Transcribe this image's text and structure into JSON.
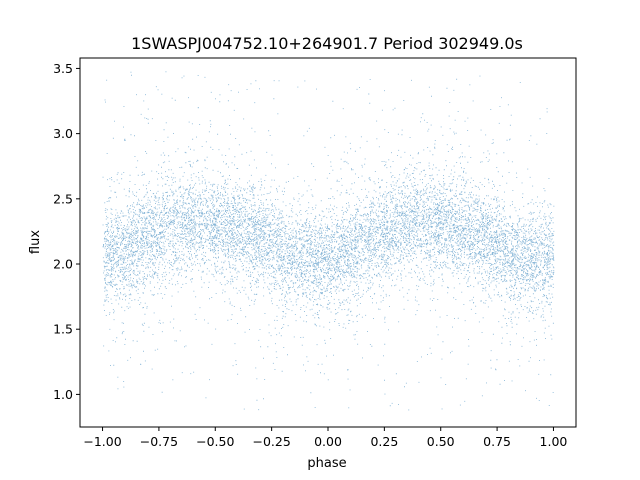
{
  "chart_data": {
    "type": "scatter",
    "title": "1SWASPJ004752.10+264901.7 Period 302949.0s",
    "xlabel": "phase",
    "ylabel": "flux",
    "xlim": [
      -1.1,
      1.1
    ],
    "ylim": [
      0.75,
      3.58
    ],
    "xticks": [
      -1.0,
      -0.75,
      -0.5,
      -0.25,
      0.0,
      0.25,
      0.5,
      0.75,
      1.0
    ],
    "xtick_labels": [
      "−1.00",
      "−0.75",
      "−0.50",
      "−0.25",
      "0.00",
      "0.25",
      "0.50",
      "0.75",
      "1.00"
    ],
    "yticks": [
      1.0,
      1.5,
      2.0,
      2.5,
      3.0,
      3.5
    ],
    "ytick_labels": [
      "1.0",
      "1.5",
      "2.0",
      "2.5",
      "3.0",
      "3.5"
    ],
    "grid": false,
    "marker_color": "#1f77b4",
    "series": [
      {
        "description_points": "phase-folded light curve, dense cloud of points",
        "phase_range": [
          -1.0,
          1.0
        ],
        "flux_range": [
          0.88,
          3.5
        ],
        "trend": {
          "phase": [
            -1.0,
            -0.9,
            -0.8,
            -0.7,
            -0.6,
            -0.5,
            -0.4,
            -0.3,
            -0.2,
            -0.1,
            0.0,
            0.1,
            0.2,
            0.3,
            0.4,
            0.5,
            0.6,
            0.7,
            0.8,
            0.9,
            1.0
          ],
          "flux_mean": [
            2.05,
            2.1,
            2.2,
            2.3,
            2.33,
            2.3,
            2.25,
            2.2,
            2.08,
            2.03,
            2.05,
            2.1,
            2.2,
            2.3,
            2.33,
            2.3,
            2.25,
            2.2,
            2.08,
            2.03,
            2.05
          ]
        }
      }
    ]
  }
}
